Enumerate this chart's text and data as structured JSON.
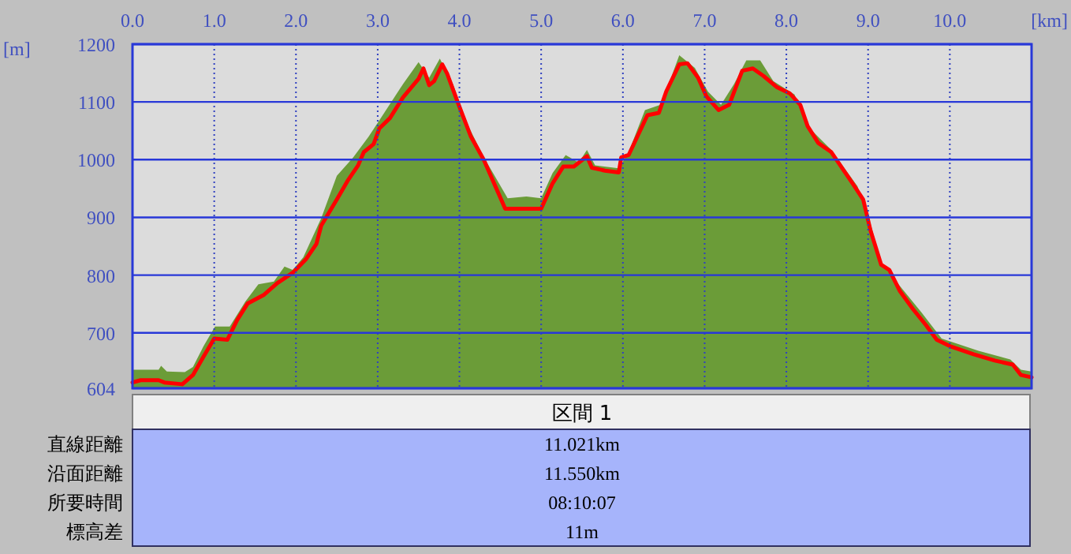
{
  "chart_data": {
    "type": "area",
    "xlabel": "[km]",
    "ylabel": "[m]",
    "xlim": [
      0,
      11.0
    ],
    "ylim": [
      604,
      1200
    ],
    "xticks": [
      {
        "value": 0,
        "label": "0.0"
      },
      {
        "value": 1,
        "label": "1.0"
      },
      {
        "value": 2,
        "label": "2.0"
      },
      {
        "value": 3,
        "label": "3.0"
      },
      {
        "value": 4,
        "label": "4.0"
      },
      {
        "value": 5,
        "label": "5.0"
      },
      {
        "value": 6,
        "label": "6.0"
      },
      {
        "value": 7,
        "label": "7.0"
      },
      {
        "value": 8,
        "label": "8.0"
      },
      {
        "value": 9,
        "label": "9.0"
      },
      {
        "value": 10,
        "label": "10.0"
      }
    ],
    "yticks": [
      604,
      700,
      800,
      900,
      1000,
      1100,
      1200
    ],
    "grid": true,
    "series": [
      {
        "color": "#6b9c38",
        "x": [
          0,
          0.32,
          0.35,
          0.42,
          0.64,
          0.74,
          0.87,
          1.01,
          1.19,
          1.38,
          1.54,
          1.73,
          1.86,
          1.96,
          2.09,
          2.31,
          2.5,
          2.7,
          2.89,
          3.08,
          3.31,
          3.5,
          3.63,
          3.76,
          3.92,
          4.11,
          4.3,
          4.59,
          4.82,
          5.0,
          5.14,
          5.3,
          5.46,
          5.56,
          5.66,
          5.95,
          6.07,
          6.27,
          6.46,
          6.56,
          6.69,
          6.88,
          7.04,
          7.2,
          7.36,
          7.51,
          7.68,
          7.84,
          8.1,
          8.26,
          8.55,
          8.87,
          9.0,
          9.16,
          9.39,
          9.65,
          9.9,
          10.35,
          10.74,
          10.87,
          11.0
        ],
        "values": [
          636,
          636,
          643,
          633,
          632,
          641,
          677,
          711,
          711,
          754,
          784,
          789,
          815,
          809,
          831,
          899,
          972,
          1004,
          1040,
          1081,
          1131,
          1169,
          1142,
          1175,
          1131,
          1058,
          1004,
          933,
          936,
          933,
          977,
          1008,
          995,
          1017,
          990,
          985,
          1013,
          1086,
          1095,
          1131,
          1181,
          1159,
          1118,
          1095,
          1131,
          1172,
          1172,
          1136,
          1113,
          1058,
          1017,
          954,
          904,
          822,
          781,
          736,
          690,
          669,
          654,
          636,
          633
        ]
      },
      {
        "type": "line",
        "color": "#ff0000",
        "x": [
          0,
          0.1,
          0.32,
          0.39,
          0.61,
          0.74,
          0.87,
          1.0,
          1.16,
          1.28,
          1.41,
          1.61,
          1.77,
          1.96,
          2.12,
          2.25,
          2.31,
          2.5,
          2.63,
          2.76,
          2.83,
          2.95,
          3.02,
          3.15,
          3.31,
          3.5,
          3.56,
          3.63,
          3.69,
          3.79,
          3.85,
          3.98,
          4.14,
          4.3,
          4.56,
          5.0,
          5.14,
          5.27,
          5.4,
          5.56,
          5.62,
          5.78,
          5.95,
          5.98,
          6.07,
          6.3,
          6.44,
          6.53,
          6.69,
          6.79,
          6.92,
          7.02,
          7.17,
          7.3,
          7.46,
          7.59,
          7.72,
          7.88,
          8.04,
          8.17,
          8.26,
          8.39,
          8.55,
          8.68,
          8.81,
          8.94,
          9.03,
          9.16,
          9.26,
          9.39,
          9.55,
          9.71,
          9.84,
          10.0,
          10.29,
          10.55,
          10.77,
          10.87,
          11.0
        ],
        "values": [
          614,
          618,
          618,
          614,
          611,
          627,
          659,
          690,
          688,
          722,
          751,
          766,
          786,
          804,
          827,
          854,
          886,
          931,
          963,
          990,
          1013,
          1027,
          1054,
          1072,
          1108,
          1140,
          1158,
          1129,
          1136,
          1165,
          1149,
          1099,
          1040,
          999,
          915,
          915,
          959,
          988,
          988,
          1006,
          986,
          981,
          978,
          1004,
          1008,
          1077,
          1081,
          1118,
          1165,
          1167,
          1142,
          1110,
          1086,
          1095,
          1154,
          1158,
          1145,
          1126,
          1115,
          1095,
          1058,
          1029,
          1013,
          986,
          959,
          931,
          877,
          818,
          809,
          772,
          741,
          713,
          688,
          677,
          663,
          652,
          645,
          627,
          623
        ]
      }
    ],
    "annotations": [
      "区間 1",
      "直線距離",
      "11.021km",
      "沿面距離",
      "11.550km",
      "所要時間",
      "08:10:07",
      "標高差",
      "11m"
    ]
  }
}
